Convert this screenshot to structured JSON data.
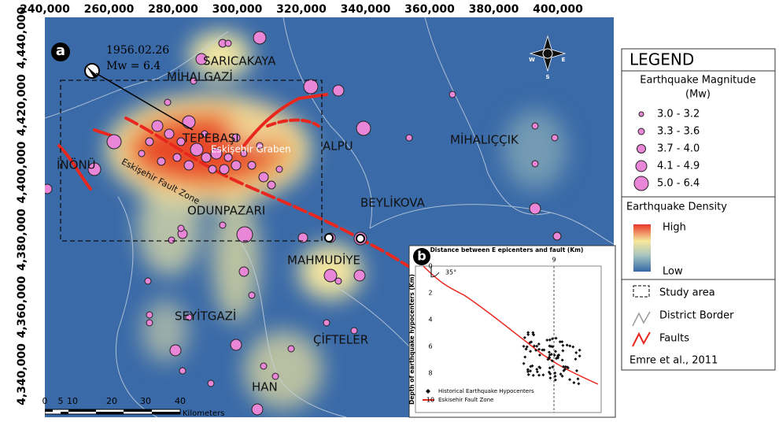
{
  "panel_a": {
    "label": "a",
    "event_date": "1956.02.26",
    "event_magnitude": "Mw = 6.4",
    "x_labels": [
      "240,000",
      "260,000",
      "280,000",
      "300,000",
      "320,000",
      "340,000",
      "360,000",
      "380,000",
      "400,000"
    ],
    "y_labels": [
      "4,440,000",
      "4,420,000",
      "4,400,000",
      "4,380,000",
      "4,360,000",
      "4,340,000"
    ],
    "places": [
      "SARICAKAYA",
      "MİHALGAZİ",
      "TEPEBAŞI",
      "Eskişehir Graben",
      "ALPU",
      "MİHALIÇÇIK",
      "İNÖNÜ",
      "Eskişehir Fault Zone",
      "ODUNPAZARI",
      "BEYLİKOVA",
      "MAHMUDİYE",
      "SEYİTGAZİ",
      "ÇİFTELER",
      "HAN"
    ],
    "scale": {
      "ticks": [
        "0",
        "5",
        "10",
        "20",
        "30",
        "40"
      ],
      "unit": "Kilometers"
    },
    "compass": [
      "W",
      "E",
      "S"
    ]
  },
  "legend": {
    "title": "LEGEND",
    "magnitude_title": "Earthquake Magnitude (Mw)",
    "magnitudes": [
      "3.0 - 3.2",
      "3.3 - 3.6",
      "3.7 - 4.0",
      "4.1 - 4.9",
      "5.0 - 6.4"
    ],
    "density_title": "Earthquake Density",
    "high": "High",
    "low": "Low",
    "items": [
      "Study area",
      "District Border",
      "Faults"
    ],
    "source": "Emre et al., 2011"
  },
  "panel_b": {
    "label": "b",
    "title": "Distance between E epicenters and fault (Km)",
    "x_tick": "9",
    "y_label": "Depth of earthquake hypocenters (Km)",
    "y_ticks": [
      "0",
      "2",
      "4",
      "6",
      "8",
      "10"
    ],
    "angle": "35°",
    "legend": [
      "Historical Earthquake Hypocenters",
      "Eskisehir Fault Zone"
    ]
  }
}
